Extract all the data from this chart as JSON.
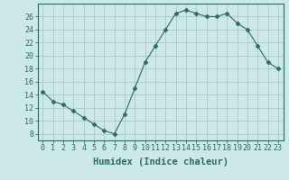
{
  "x": [
    0,
    1,
    2,
    3,
    4,
    5,
    6,
    7,
    8,
    9,
    10,
    11,
    12,
    13,
    14,
    15,
    16,
    17,
    18,
    19,
    20,
    21,
    22,
    23
  ],
  "y": [
    14.5,
    13.0,
    12.5,
    11.5,
    10.5,
    9.5,
    8.5,
    8.0,
    11.0,
    15.0,
    19.0,
    21.5,
    24.0,
    26.5,
    27.0,
    26.5,
    26.0,
    26.0,
    26.5,
    25.0,
    24.0,
    21.5,
    19.0,
    18.0
  ],
  "line_color": "#2e6b5e",
  "marker": "D",
  "marker_size": 2.5,
  "bg_color": "#cce8e8",
  "grid_color": "#b0cccc",
  "xlabel": "Humidex (Indice chaleur)",
  "ylim": [
    7,
    28
  ],
  "xlim": [
    -0.5,
    23.5
  ],
  "yticks": [
    8,
    10,
    12,
    14,
    16,
    18,
    20,
    22,
    24,
    26
  ],
  "xticks": [
    0,
    1,
    2,
    3,
    4,
    5,
    6,
    7,
    8,
    9,
    10,
    11,
    12,
    13,
    14,
    15,
    16,
    17,
    18,
    19,
    20,
    21,
    22,
    23
  ],
  "tick_color": "#2e6b5e",
  "label_fontsize": 7.5,
  "tick_fontsize": 6.0
}
